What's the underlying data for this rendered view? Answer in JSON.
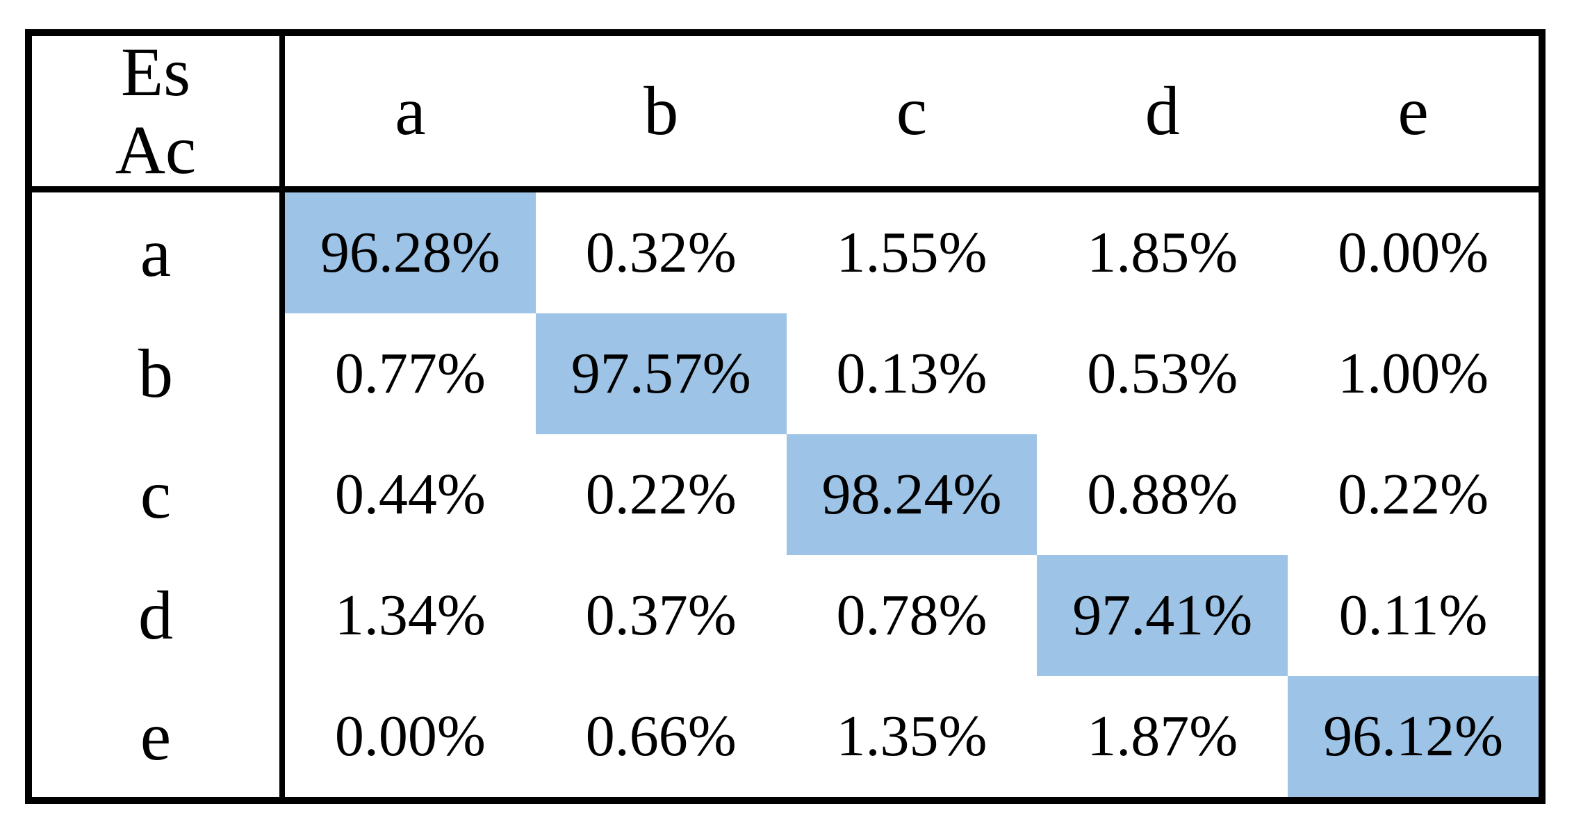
{
  "table": {
    "corner": {
      "estimated_label": "Es",
      "actual_label": "Ac"
    },
    "column_headers": [
      "a",
      "b",
      "c",
      "d",
      "e"
    ],
    "rows": [
      {
        "label": "a",
        "values": [
          "96.28%",
          "0.32%",
          "1.55%",
          "1.85%",
          "0.00%"
        ]
      },
      {
        "label": "b",
        "values": [
          "0.77%",
          "97.57%",
          "0.13%",
          "0.53%",
          "1.00%"
        ]
      },
      {
        "label": "c",
        "values": [
          "0.44%",
          "0.22%",
          "98.24%",
          "0.88%",
          "0.22%"
        ]
      },
      {
        "label": "d",
        "values": [
          "1.34%",
          "0.37%",
          "0.78%",
          "97.41%",
          "0.11%"
        ]
      },
      {
        "label": "e",
        "values": [
          "0.00%",
          "0.66%",
          "1.35%",
          "1.87%",
          "96.12%"
        ]
      }
    ],
    "colors": {
      "diagonal_highlight": "#9DC3E6",
      "border": "#000000",
      "text": "#000000",
      "background": "#FFFFFF"
    }
  },
  "chart_data": {
    "type": "table",
    "title": "",
    "corner_labels": [
      "Es",
      "Ac"
    ],
    "categories": [
      "a",
      "b",
      "c",
      "d",
      "e"
    ],
    "matrix_percent": [
      [
        96.28,
        0.32,
        1.55,
        1.85,
        0.0
      ],
      [
        0.77,
        97.57,
        0.13,
        0.53,
        1.0
      ],
      [
        0.44,
        0.22,
        98.24,
        0.88,
        0.22
      ],
      [
        1.34,
        0.37,
        0.78,
        97.41,
        0.11
      ],
      [
        0.0,
        0.66,
        1.35,
        1.87,
        96.12
      ]
    ],
    "diagonal_highlighted": true,
    "highlight_color": "#9DC3E6",
    "grid": "outer frame + header/label dividers only, no inner gridlines"
  }
}
